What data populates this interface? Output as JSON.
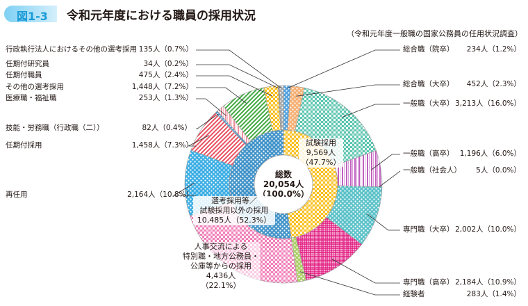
{
  "figure_number": "図1-3",
  "title": "令和元年度における職員の採用状況",
  "source_note": "（令和元年度一般職の国家公務員の任用状況調査）",
  "chart_data": {
    "type": "pie",
    "variant": "nested-donut",
    "total": {
      "label": "総数",
      "value": "20,054人",
      "pct": "（100.0%）"
    },
    "inner": [
      {
        "name": "試験採用",
        "value": 9569,
        "value_label": "9,569人",
        "pct": "（47.7%）",
        "color": "#f8c020"
      },
      {
        "name": "選考採用等／試験採用以外の採用",
        "line1": "選考採用等／",
        "line2": "試験採用以外の採用",
        "value": 10485,
        "value_label": "10,485人（52.3%）",
        "color": "#2080c0"
      }
    ],
    "outer": [
      {
        "name": "総合職（院卒）",
        "value": 234,
        "value_label": "234人（1.2%）",
        "color": "#2f8fd8",
        "side": "right"
      },
      {
        "name": "総合職（大卒）",
        "value": 452,
        "value_label": "452人（2.3%）",
        "color": "#f5a25c",
        "side": "right"
      },
      {
        "name": "一般職（大卒）",
        "value": 3213,
        "value_label": "3,213人（16.0%）",
        "color": "#5cc5b0",
        "side": "right"
      },
      {
        "name": "一般職（高卒）",
        "value": 1196,
        "value_label": "1,196人（6.0%）",
        "color": "#c060c0",
        "side": "right"
      },
      {
        "name": "一般職（社会人）",
        "value": 5,
        "value_label": "5人（0.0%）",
        "color": "#a040a0",
        "side": "right"
      },
      {
        "name": "専門職（大卒）",
        "value": 2002,
        "value_label": "2,002人（10.0%）",
        "color": "#40b8c0",
        "side": "right"
      },
      {
        "name": "専門職（高卒）",
        "value": 2184,
        "value_label": "2,184人（10.9%）",
        "color": "#e0107a",
        "side": "right"
      },
      {
        "name": "経験者",
        "value": 283,
        "value_label": "283人（1.4%）",
        "color": "#a0c850",
        "side": "right"
      },
      {
        "name": "人事交流による特別職・地方公務員・公庫等からの採用",
        "lines": [
          "人事交流による",
          "特別職・地方公務員・",
          "公庫等からの採用",
          "4,436人",
          "（22.1%）"
        ],
        "value": 4436,
        "value_label": "4,436人（22.1%）",
        "color": "#f080b8",
        "side": "inside"
      },
      {
        "name": "再任用",
        "value": 2164,
        "value_label": "2,164人（10.8%）",
        "color": "#1aa0e0",
        "side": "left"
      },
      {
        "name": "任期付採用",
        "value": 1458,
        "value_label": "1,458人（7.3%）",
        "color": "#e85060",
        "side": "left"
      },
      {
        "name": "技能・労務職（行政職（二））",
        "value": 82,
        "value_label": "82人（0.4%）",
        "color": "#3080c0",
        "side": "left"
      },
      {
        "name": "医療職・福祉職",
        "value": 253,
        "value_label": "253人（1.3%）",
        "color": "#f090a0",
        "side": "left"
      },
      {
        "name": "その他の選考採用",
        "value": 1448,
        "value_label": "1,448人（7.2%）",
        "color": "#40a840",
        "side": "left"
      },
      {
        "name": "任期付職員",
        "value": 475,
        "value_label": "475人（2.4%）",
        "color": "#f8c020",
        "side": "left"
      },
      {
        "name": "任期付研究員",
        "value": 34,
        "value_label": "34人（0.2%）",
        "color": "#888888",
        "side": "left"
      },
      {
        "name": "行政執行法人におけるその他の選考採用",
        "value": 135,
        "value_label": "135人（0.7%）",
        "color": "#9a9a9a",
        "side": "left"
      }
    ]
  }
}
